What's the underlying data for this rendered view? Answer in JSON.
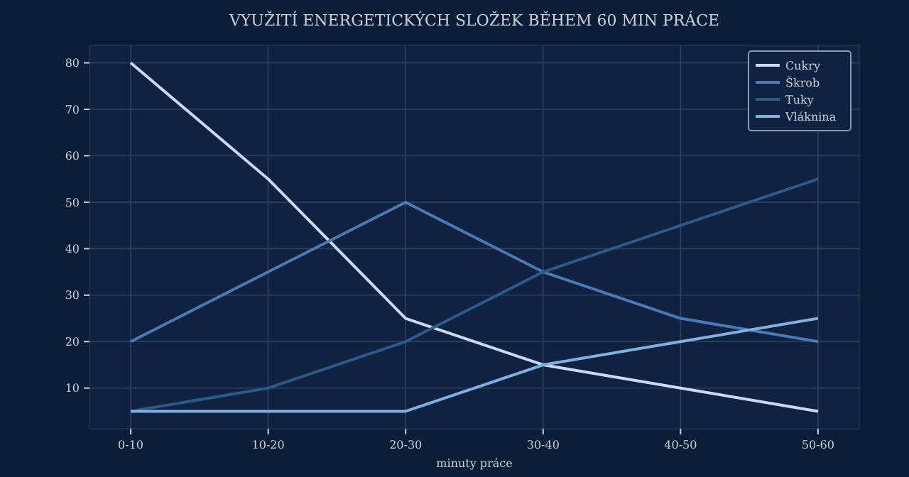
{
  "chart_data": {
    "type": "line",
    "title": "VYUŽITÍ ENERGETICKÝCH SLOŽEK BĚHEM 60 MIN PRÁCE",
    "xlabel": "minuty práce",
    "categories": [
      "0-10",
      "10-20",
      "20-30",
      "30-40",
      "40-50",
      "50-60"
    ],
    "series": [
      {
        "name": "Cukry",
        "color": "#c6dbf5",
        "values": [
          80,
          55,
          25,
          15,
          10,
          5
        ]
      },
      {
        "name": "Škrob",
        "color": "#4a7bb5",
        "values": [
          20,
          35,
          50,
          35,
          25,
          20
        ]
      },
      {
        "name": "Tuky",
        "color": "#2e5a88",
        "values": [
          5,
          10,
          20,
          35,
          45,
          55
        ]
      },
      {
        "name": "Vláknina",
        "color": "#7fb0e0",
        "values": [
          5,
          5,
          5,
          15,
          20,
          25
        ]
      }
    ],
    "ylim": [
      1.25,
      83.75
    ],
    "yticks": [
      10,
      20,
      30,
      40,
      50,
      60,
      70,
      80
    ],
    "grid": true,
    "legend": "top right",
    "marker": "none",
    "line_style": "solid"
  }
}
